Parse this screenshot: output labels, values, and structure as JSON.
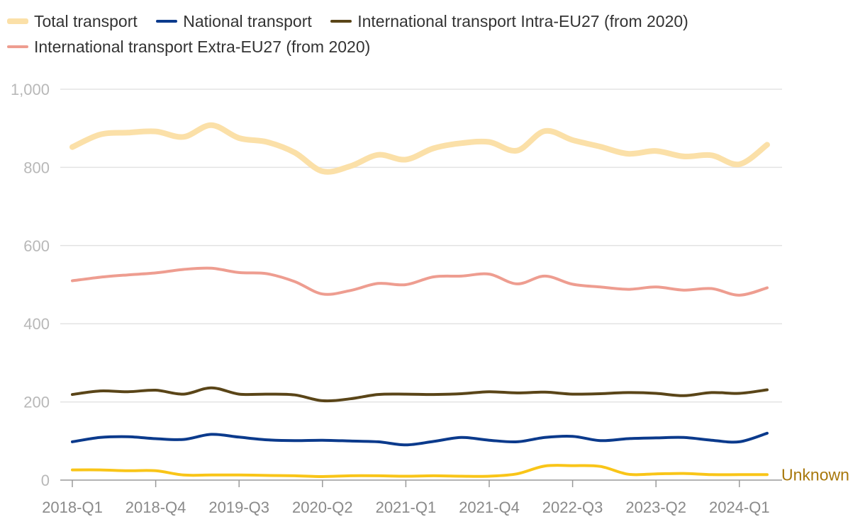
{
  "chart_data": {
    "type": "line",
    "categories": [
      "2018-Q1",
      "2018-Q2",
      "2018-Q3",
      "2018-Q4",
      "2019-Q1",
      "2019-Q2",
      "2019-Q3",
      "2019-Q4",
      "2020-Q1",
      "2020-Q2",
      "2020-Q3",
      "2020-Q4",
      "2021-Q1",
      "2021-Q2",
      "2021-Q3",
      "2021-Q4",
      "2022-Q1",
      "2022-Q2",
      "2022-Q3",
      "2022-Q4",
      "2023-Q1",
      "2023-Q2",
      "2023-Q3",
      "2023-Q4",
      "2024-Q1",
      "2024-Q2"
    ],
    "x_tick_labels": [
      "2018-Q1",
      "2018-Q4",
      "2019-Q3",
      "2020-Q2",
      "2021-Q1",
      "2021-Q4",
      "2022-Q3",
      "2023-Q2",
      "2024-Q1"
    ],
    "y_ticks": [
      "0",
      "200",
      "400",
      "600",
      "800",
      "1,000"
    ],
    "ylim": [
      0,
      1000
    ],
    "series": [
      {
        "name": "Total transport",
        "color": "#fbe0a8",
        "values": [
          852,
          884,
          889,
          892,
          878,
          908,
          875,
          865,
          838,
          790,
          803,
          832,
          820,
          849,
          862,
          865,
          843,
          893,
          870,
          853,
          835,
          842,
          828,
          831,
          808,
          858
        ]
      },
      {
        "name": "National transport",
        "color": "#0b3a8c",
        "values": [
          98,
          109,
          111,
          106,
          104,
          117,
          110,
          103,
          101,
          102,
          100,
          98,
          90,
          99,
          109,
          102,
          98,
          109,
          112,
          101,
          106,
          108,
          109,
          102,
          98,
          120
        ]
      },
      {
        "name": "International transport Intra-EU27 (from 2020)",
        "color": "#5a4518",
        "values": [
          219,
          228,
          226,
          230,
          220,
          236,
          220,
          220,
          218,
          203,
          208,
          219,
          220,
          219,
          221,
          226,
          223,
          225,
          220,
          221,
          224,
          222,
          216,
          224,
          222,
          231
        ]
      },
      {
        "name": "International transport Extra-EU27 (from 2020)",
        "color": "#ee9d90",
        "values": [
          510,
          519,
          525,
          530,
          539,
          542,
          531,
          528,
          508,
          476,
          485,
          503,
          500,
          520,
          522,
          527,
          502,
          522,
          501,
          494,
          488,
          494,
          486,
          490,
          473,
          492
        ]
      },
      {
        "name": "Unknown",
        "color": "#f9c518",
        "values": [
          26,
          26,
          24,
          24,
          13,
          13,
          13,
          12,
          11,
          9,
          11,
          11,
          10,
          11,
          10,
          10,
          16,
          36,
          37,
          35,
          15,
          16,
          17,
          14,
          14,
          14
        ]
      }
    ]
  }
}
